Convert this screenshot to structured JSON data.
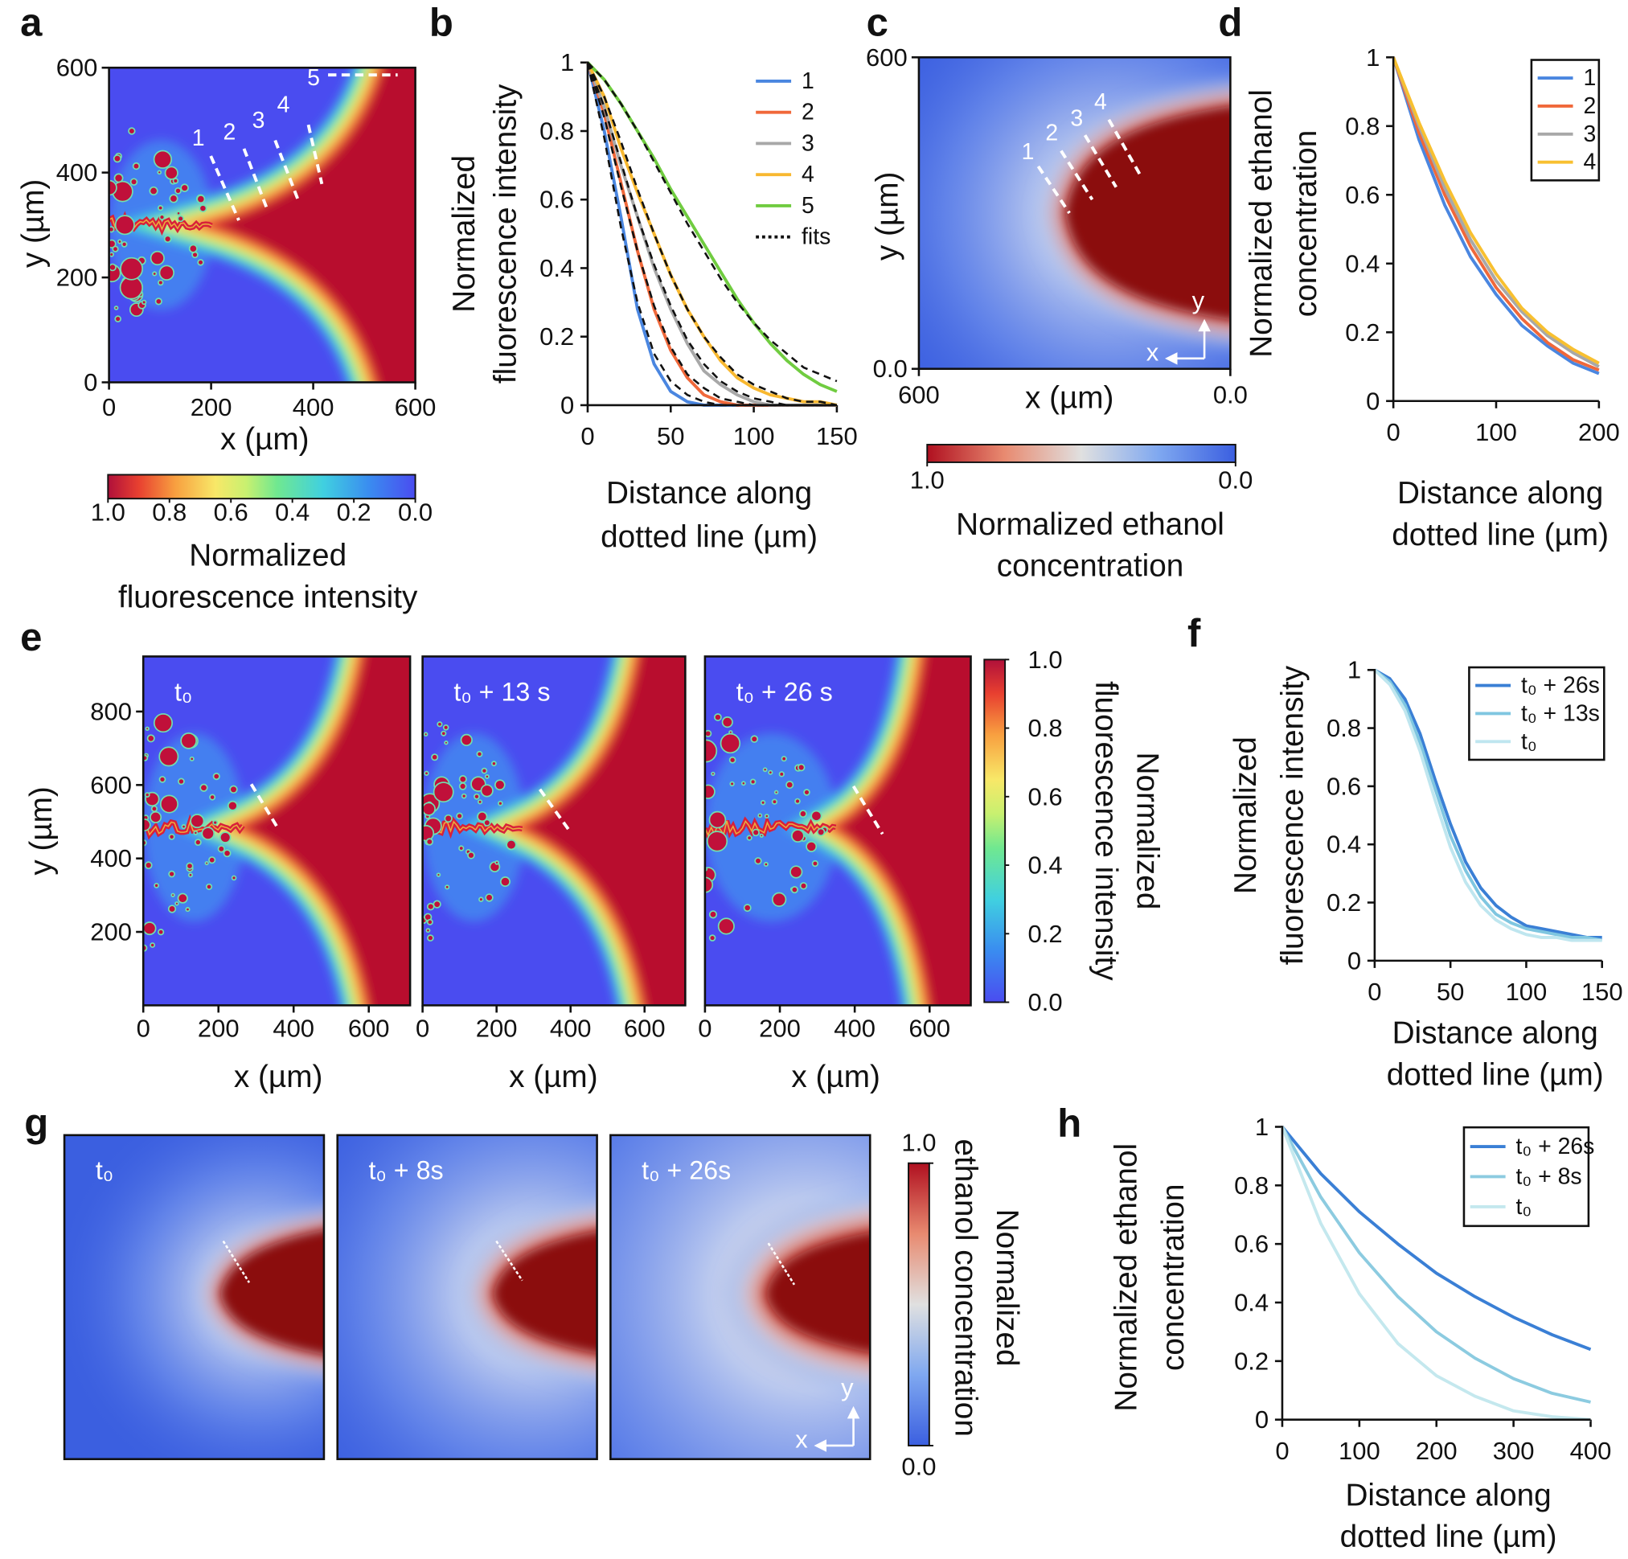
{
  "chart_data": [
    {
      "type": "heatmap",
      "panel": "a",
      "xlabel": "x (µm)",
      "ylabel": "y (µm)",
      "xlim": [
        0,
        600
      ],
      "ylim": [
        0,
        600
      ],
      "xticks": [
        0,
        200,
        400,
        600
      ],
      "yticks": [
        0,
        200,
        400,
        600
      ],
      "annotations": [
        "1",
        "2",
        "3",
        "4",
        "5"
      ],
      "colormap": "fluorescence",
      "clim": [
        1,
        0
      ],
      "cticks": [
        {
          "value": 1,
          "label": "1.0"
        },
        0.8,
        0.6,
        0.4,
        0.2,
        {
          "value": 0,
          "label": "0.0"
        }
      ],
      "colorbar_label": [
        "Normalized",
        "fluorescence intensity"
      ]
    },
    {
      "type": "line",
      "panel": "b",
      "xlabel": [
        "Distance along",
        "dotted line (µm)"
      ],
      "ylabel": [
        "Normalized",
        "fluorescence intensity"
      ],
      "xlim": [
        0,
        150
      ],
      "ylim": [
        0,
        1
      ],
      "xticks": [
        0,
        50,
        100,
        150
      ],
      "yticks": [
        0,
        0.2,
        0.4,
        0.6,
        0.8,
        1
      ],
      "x": [
        0,
        10,
        20,
        30,
        40,
        50,
        60,
        70,
        80,
        90,
        100,
        110,
        120,
        130,
        140,
        150
      ],
      "series": [
        {
          "name": "1",
          "color": "#4a86e0",
          "values": [
            1,
            0.8,
            0.55,
            0.28,
            0.12,
            0.04,
            0.01,
            0,
            0,
            0,
            0,
            0,
            0,
            0,
            0,
            0
          ]
        },
        {
          "name": "2",
          "color": "#f0683a",
          "values": [
            1,
            0.85,
            0.65,
            0.45,
            0.28,
            0.16,
            0.08,
            0.03,
            0.01,
            0,
            0,
            0,
            0,
            0,
            0,
            0
          ]
        },
        {
          "name": "3",
          "color": "#a8a8a8",
          "values": [
            1,
            0.87,
            0.7,
            0.55,
            0.4,
            0.28,
            0.18,
            0.1,
            0.06,
            0.03,
            0.01,
            0,
            0,
            0,
            0,
            0
          ]
        },
        {
          "name": "4",
          "color": "#f8b830",
          "values": [
            1,
            0.9,
            0.75,
            0.62,
            0.5,
            0.38,
            0.28,
            0.2,
            0.13,
            0.08,
            0.05,
            0.03,
            0.02,
            0.01,
            0.01,
            0
          ]
        },
        {
          "name": "5",
          "color": "#70cc40",
          "values": [
            1,
            0.95,
            0.88,
            0.8,
            0.72,
            0.63,
            0.55,
            0.47,
            0.39,
            0.31,
            0.24,
            0.18,
            0.13,
            0.09,
            0.06,
            0.04
          ]
        }
      ],
      "fits": {
        "name": "fits",
        "color": "#111111",
        "dashed": true,
        "values": [
          [
            1,
            0.78,
            0.52,
            0.3,
            0.15,
            0.07,
            0.03,
            0.01,
            0,
            0,
            0,
            0,
            0,
            0,
            0,
            0
          ],
          [
            1,
            0.84,
            0.64,
            0.45,
            0.29,
            0.17,
            0.09,
            0.05,
            0.02,
            0.01,
            0,
            0,
            0,
            0,
            0,
            0
          ],
          [
            1,
            0.87,
            0.71,
            0.55,
            0.41,
            0.29,
            0.19,
            0.12,
            0.07,
            0.04,
            0.02,
            0.01,
            0,
            0,
            0,
            0
          ],
          [
            1,
            0.9,
            0.77,
            0.63,
            0.5,
            0.38,
            0.28,
            0.2,
            0.14,
            0.09,
            0.06,
            0.04,
            0.02,
            0.01,
            0.01,
            0
          ],
          [
            1,
            0.95,
            0.88,
            0.8,
            0.71,
            0.62,
            0.53,
            0.45,
            0.37,
            0.3,
            0.24,
            0.19,
            0.15,
            0.11,
            0.09,
            0.07
          ]
        ]
      }
    },
    {
      "type": "heatmap",
      "panel": "c",
      "xlabel": "x (µm)",
      "ylabel": "y (µm)",
      "xlim": [
        600,
        0
      ],
      "ylim": [
        0,
        600
      ],
      "xticks": [
        600,
        {
          "value": 0,
          "label": "0.0"
        }
      ],
      "yticks": [
        {
          "value": 0,
          "label": "0.0"
        },
        600
      ],
      "annotations": [
        "1",
        "2",
        "3",
        "4"
      ],
      "axis_arrows": [
        "x",
        "y"
      ],
      "colormap": "ethanol",
      "clim": [
        1,
        0
      ],
      "cticks": [
        {
          "value": 1,
          "label": "1.0"
        },
        {
          "value": 0,
          "label": "0.0"
        }
      ],
      "colorbar_label": [
        "Normalized ethanol",
        "concentration"
      ]
    },
    {
      "type": "line",
      "panel": "d",
      "xlabel": [
        "Distance along",
        "dotted line (µm)"
      ],
      "ylabel": [
        "Normalized ethanol",
        "concentration"
      ],
      "xlim": [
        0,
        200
      ],
      "ylim": [
        0,
        1
      ],
      "xticks": [
        0,
        100,
        200
      ],
      "yticks": [
        0,
        0.2,
        0.4,
        0.6,
        0.8,
        1
      ],
      "x": [
        0,
        25,
        50,
        75,
        100,
        125,
        150,
        175,
        200
      ],
      "series": [
        {
          "name": "1",
          "color": "#4a86e0",
          "values": [
            1,
            0.76,
            0.57,
            0.42,
            0.31,
            0.22,
            0.16,
            0.11,
            0.08
          ]
        },
        {
          "name": "2",
          "color": "#f0683a",
          "values": [
            1,
            0.78,
            0.6,
            0.45,
            0.33,
            0.24,
            0.17,
            0.12,
            0.09
          ]
        },
        {
          "name": "3",
          "color": "#a8a8a8",
          "values": [
            1,
            0.8,
            0.62,
            0.47,
            0.35,
            0.26,
            0.19,
            0.14,
            0.1
          ]
        },
        {
          "name": "4",
          "color": "#f8c030",
          "values": [
            1,
            0.81,
            0.64,
            0.49,
            0.37,
            0.27,
            0.2,
            0.15,
            0.11
          ]
        }
      ]
    },
    {
      "type": "heatmap",
      "panel": "e",
      "frames": [
        "t₀",
        "t₀ + 13 s",
        "t₀ + 26 s"
      ],
      "xlabel": "x (µm)",
      "ylabel": "y (µm)",
      "xlim": [
        0,
        710
      ],
      "ylim": [
        0,
        950
      ],
      "xticks": [
        0,
        200,
        400,
        600
      ],
      "yticks": [
        200,
        400,
        600,
        800
      ],
      "colormap": "fluorescence",
      "clim": [
        0,
        1
      ],
      "cticks": [
        {
          "value": 0,
          "label": "0.0"
        },
        0.2,
        0.4,
        0.6,
        0.8,
        {
          "value": 1,
          "label": "1.0"
        }
      ],
      "colorbar_label": [
        "Normalized",
        "fluorescence intensity"
      ]
    },
    {
      "type": "line",
      "panel": "f",
      "xlabel": [
        "Distance along",
        "dotted line (µm)"
      ],
      "ylabel": [
        "Normalized",
        "fluorescence intensity"
      ],
      "xlim": [
        0,
        150
      ],
      "ylim": [
        0,
        1
      ],
      "xticks": [
        0,
        50,
        100,
        150
      ],
      "yticks": [
        0,
        0.2,
        0.4,
        0.6,
        0.8,
        1
      ],
      "x": [
        0,
        10,
        20,
        30,
        40,
        50,
        60,
        70,
        80,
        90,
        100,
        110,
        120,
        130,
        140,
        150
      ],
      "series": [
        {
          "name": "t₀ + 26s",
          "color": "#3a7fd5",
          "values": [
            1,
            0.97,
            0.9,
            0.78,
            0.62,
            0.47,
            0.34,
            0.25,
            0.19,
            0.15,
            0.12,
            0.11,
            0.1,
            0.09,
            0.08,
            0.08
          ]
        },
        {
          "name": "t₀ + 13s",
          "color": "#7fc6e0",
          "values": [
            1,
            0.96,
            0.88,
            0.75,
            0.59,
            0.43,
            0.31,
            0.22,
            0.16,
            0.13,
            0.11,
            0.1,
            0.09,
            0.08,
            0.08,
            0.07
          ]
        },
        {
          "name": "t₀",
          "color": "#bfe6ef",
          "values": [
            1,
            0.95,
            0.86,
            0.72,
            0.55,
            0.39,
            0.27,
            0.19,
            0.14,
            0.11,
            0.09,
            0.08,
            0.08,
            0.07,
            0.07,
            0.07
          ]
        }
      ]
    },
    {
      "type": "heatmap",
      "panel": "g",
      "frames": [
        "t₀",
        "t₀ + 8s",
        "t₀ + 26s"
      ],
      "axis_arrows": [
        "x",
        "y"
      ],
      "colormap": "ethanol",
      "clim": [
        0,
        1
      ],
      "cticks": [
        {
          "value": 1,
          "label": "1.0"
        },
        {
          "value": 0,
          "label": "0.0"
        }
      ],
      "colorbar_label": [
        "Normalized",
        "ethanol concentration"
      ]
    },
    {
      "type": "line",
      "panel": "h",
      "xlabel": [
        "Distance along",
        "dotted line (µm)"
      ],
      "ylabel": [
        "Normalized ethanol",
        "concentration"
      ],
      "xlim": [
        0,
        400
      ],
      "ylim": [
        0,
        1
      ],
      "xticks": [
        0,
        100,
        200,
        300,
        400
      ],
      "yticks": [
        0,
        0.2,
        0.4,
        0.6,
        0.8,
        1
      ],
      "x": [
        0,
        50,
        100,
        150,
        200,
        250,
        300,
        350,
        400
      ],
      "series": [
        {
          "name": "t₀ + 26s",
          "color": "#3a7fd5",
          "values": [
            1,
            0.84,
            0.71,
            0.6,
            0.5,
            0.42,
            0.35,
            0.29,
            0.24
          ]
        },
        {
          "name": "t₀ + 8s",
          "color": "#8ccbe0",
          "values": [
            1,
            0.76,
            0.57,
            0.42,
            0.3,
            0.21,
            0.14,
            0.09,
            0.06
          ]
        },
        {
          "name": "t₀",
          "color": "#c4e8ee",
          "values": [
            1,
            0.67,
            0.43,
            0.26,
            0.15,
            0.08,
            0.03,
            0.01,
            0
          ]
        }
      ]
    }
  ]
}
